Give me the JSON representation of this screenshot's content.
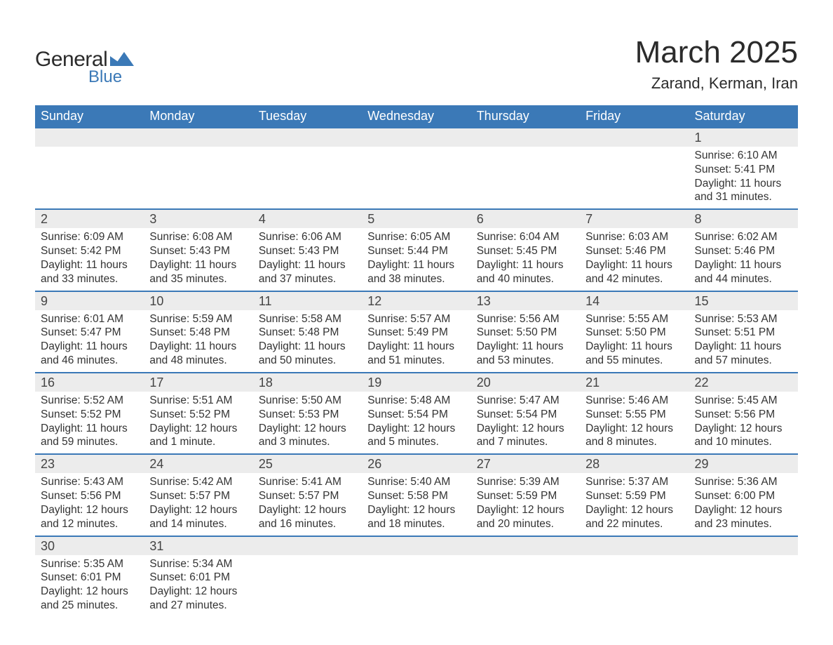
{
  "logo": {
    "main": "General",
    "sub": "Blue",
    "shape_color": "#3b79b7",
    "main_color": "#2b2b2b"
  },
  "title": "March 2025",
  "location": "Zarand, Kerman, Iran",
  "header_bg": "#3b79b7",
  "header_fg": "#ffffff",
  "daynum_bg": "#ececec",
  "row_border_color": "#3b79b7",
  "text_color": "#333333",
  "title_fontsize": 44,
  "location_fontsize": 22,
  "header_fontsize": 18,
  "daynum_fontsize": 18,
  "body_fontsize": 15.5,
  "columns": [
    "Sunday",
    "Monday",
    "Tuesday",
    "Wednesday",
    "Thursday",
    "Friday",
    "Saturday"
  ],
  "weeks": [
    [
      null,
      null,
      null,
      null,
      null,
      null,
      {
        "d": "1",
        "sr": "6:10 AM",
        "ss": "5:41 PM",
        "dl": "11 hours and 31 minutes."
      }
    ],
    [
      {
        "d": "2",
        "sr": "6:09 AM",
        "ss": "5:42 PM",
        "dl": "11 hours and 33 minutes."
      },
      {
        "d": "3",
        "sr": "6:08 AM",
        "ss": "5:43 PM",
        "dl": "11 hours and 35 minutes."
      },
      {
        "d": "4",
        "sr": "6:06 AM",
        "ss": "5:43 PM",
        "dl": "11 hours and 37 minutes."
      },
      {
        "d": "5",
        "sr": "6:05 AM",
        "ss": "5:44 PM",
        "dl": "11 hours and 38 minutes."
      },
      {
        "d": "6",
        "sr": "6:04 AM",
        "ss": "5:45 PM",
        "dl": "11 hours and 40 minutes."
      },
      {
        "d": "7",
        "sr": "6:03 AM",
        "ss": "5:46 PM",
        "dl": "11 hours and 42 minutes."
      },
      {
        "d": "8",
        "sr": "6:02 AM",
        "ss": "5:46 PM",
        "dl": "11 hours and 44 minutes."
      }
    ],
    [
      {
        "d": "9",
        "sr": "6:01 AM",
        "ss": "5:47 PM",
        "dl": "11 hours and 46 minutes."
      },
      {
        "d": "10",
        "sr": "5:59 AM",
        "ss": "5:48 PM",
        "dl": "11 hours and 48 minutes."
      },
      {
        "d": "11",
        "sr": "5:58 AM",
        "ss": "5:48 PM",
        "dl": "11 hours and 50 minutes."
      },
      {
        "d": "12",
        "sr": "5:57 AM",
        "ss": "5:49 PM",
        "dl": "11 hours and 51 minutes."
      },
      {
        "d": "13",
        "sr": "5:56 AM",
        "ss": "5:50 PM",
        "dl": "11 hours and 53 minutes."
      },
      {
        "d": "14",
        "sr": "5:55 AM",
        "ss": "5:50 PM",
        "dl": "11 hours and 55 minutes."
      },
      {
        "d": "15",
        "sr": "5:53 AM",
        "ss": "5:51 PM",
        "dl": "11 hours and 57 minutes."
      }
    ],
    [
      {
        "d": "16",
        "sr": "5:52 AM",
        "ss": "5:52 PM",
        "dl": "11 hours and 59 minutes."
      },
      {
        "d": "17",
        "sr": "5:51 AM",
        "ss": "5:52 PM",
        "dl": "12 hours and 1 minute."
      },
      {
        "d": "18",
        "sr": "5:50 AM",
        "ss": "5:53 PM",
        "dl": "12 hours and 3 minutes."
      },
      {
        "d": "19",
        "sr": "5:48 AM",
        "ss": "5:54 PM",
        "dl": "12 hours and 5 minutes."
      },
      {
        "d": "20",
        "sr": "5:47 AM",
        "ss": "5:54 PM",
        "dl": "12 hours and 7 minutes."
      },
      {
        "d": "21",
        "sr": "5:46 AM",
        "ss": "5:55 PM",
        "dl": "12 hours and 8 minutes."
      },
      {
        "d": "22",
        "sr": "5:45 AM",
        "ss": "5:56 PM",
        "dl": "12 hours and 10 minutes."
      }
    ],
    [
      {
        "d": "23",
        "sr": "5:43 AM",
        "ss": "5:56 PM",
        "dl": "12 hours and 12 minutes."
      },
      {
        "d": "24",
        "sr": "5:42 AM",
        "ss": "5:57 PM",
        "dl": "12 hours and 14 minutes."
      },
      {
        "d": "25",
        "sr": "5:41 AM",
        "ss": "5:57 PM",
        "dl": "12 hours and 16 minutes."
      },
      {
        "d": "26",
        "sr": "5:40 AM",
        "ss": "5:58 PM",
        "dl": "12 hours and 18 minutes."
      },
      {
        "d": "27",
        "sr": "5:39 AM",
        "ss": "5:59 PM",
        "dl": "12 hours and 20 minutes."
      },
      {
        "d": "28",
        "sr": "5:37 AM",
        "ss": "5:59 PM",
        "dl": "12 hours and 22 minutes."
      },
      {
        "d": "29",
        "sr": "5:36 AM",
        "ss": "6:00 PM",
        "dl": "12 hours and 23 minutes."
      }
    ],
    [
      {
        "d": "30",
        "sr": "5:35 AM",
        "ss": "6:01 PM",
        "dl": "12 hours and 25 minutes."
      },
      {
        "d": "31",
        "sr": "5:34 AM",
        "ss": "6:01 PM",
        "dl": "12 hours and 27 minutes."
      },
      null,
      null,
      null,
      null,
      null
    ]
  ],
  "labels": {
    "sunrise": "Sunrise: ",
    "sunset": "Sunset: ",
    "daylight": "Daylight: "
  }
}
